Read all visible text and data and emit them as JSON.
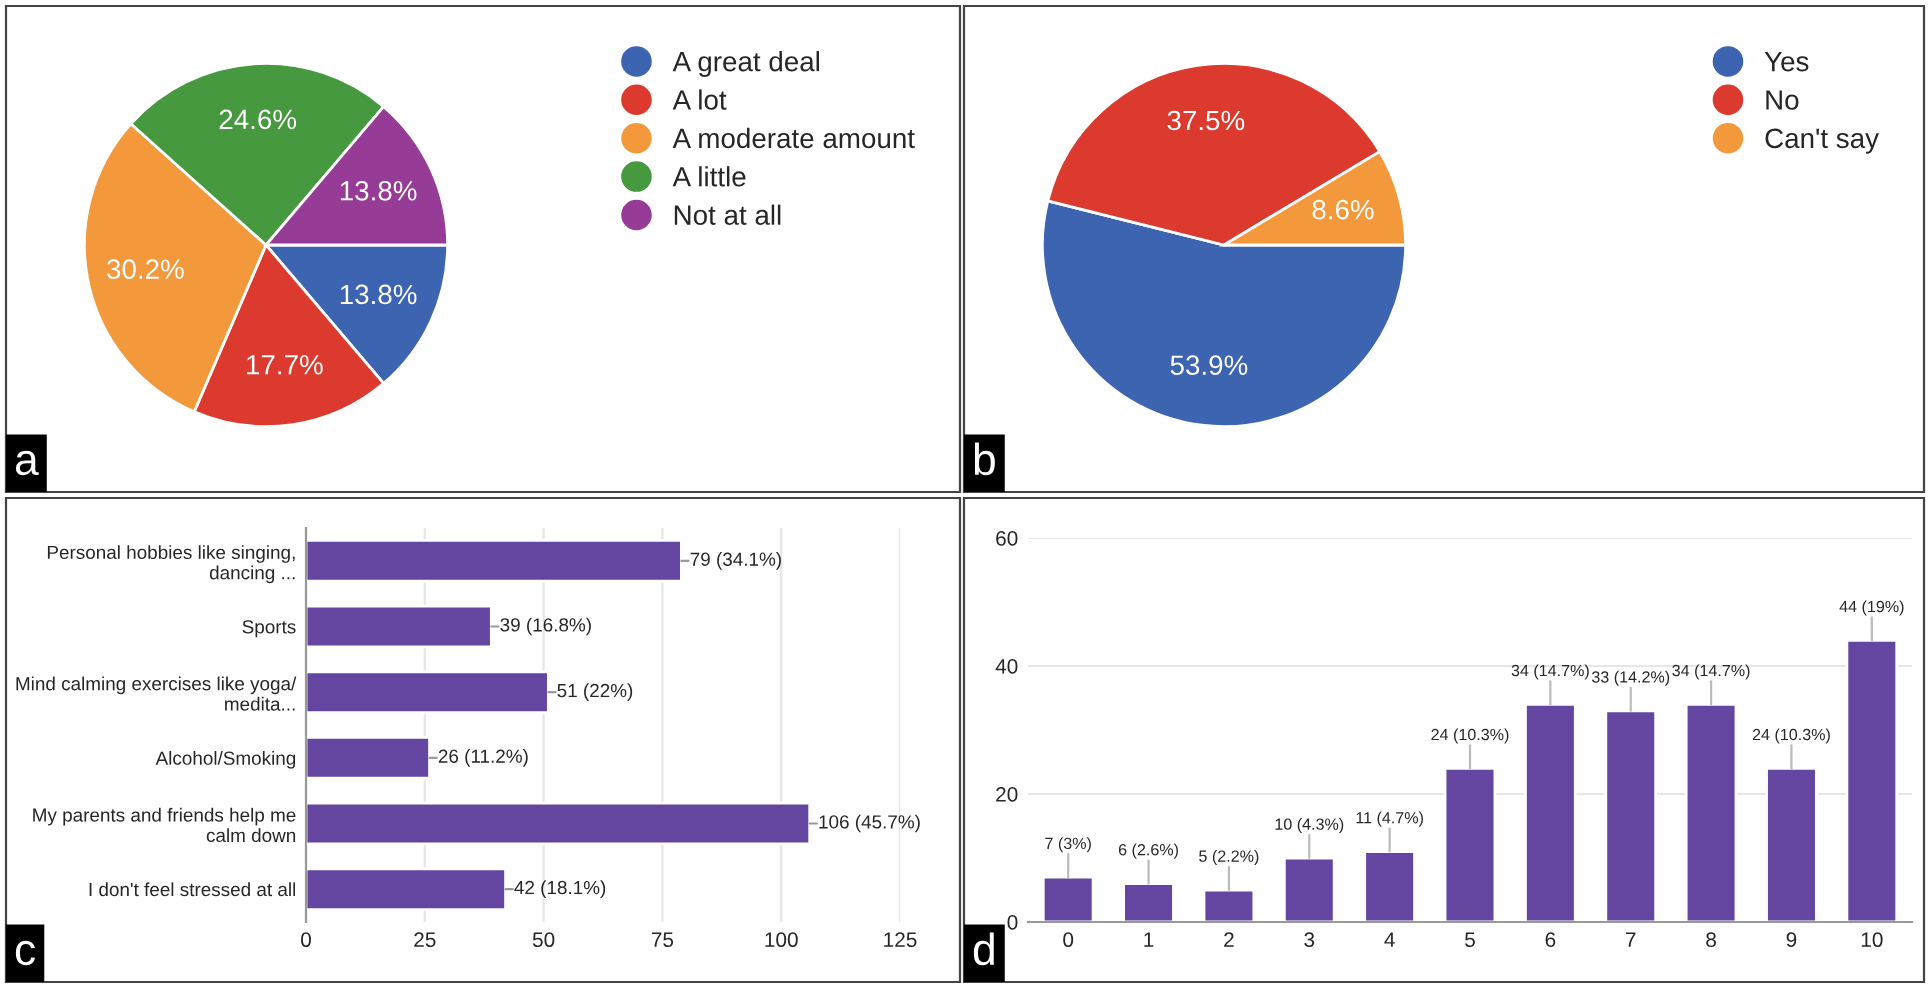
{
  "chart_data": [
    {
      "type": "pie",
      "categories": [
        "A great deal",
        "A lot",
        "A moderate amount",
        "A little",
        "Not at all"
      ],
      "values": [
        13.8,
        17.7,
        30.2,
        24.6,
        13.8
      ],
      "colors": [
        "#3c64b1",
        "#dc3a2f",
        "#f3993c",
        "#46993f",
        "#963c96"
      ],
      "value_labels": [
        "13.8%",
        "17.7%",
        "30.2%",
        "24.6%",
        "13.8%"
      ],
      "legend": "top right",
      "annotations": [
        "a"
      ]
    },
    {
      "type": "pie",
      "categories": [
        "Yes",
        "No",
        "Can't say"
      ],
      "values": [
        53.9,
        37.5,
        8.6
      ],
      "colors": [
        "#3c64b1",
        "#dc3a2f",
        "#f3993c"
      ],
      "value_labels": [
        "53.9%",
        "37.5%",
        "8.6%"
      ],
      "legend": "top right",
      "annotations": [
        "b"
      ]
    },
    {
      "type": "bar",
      "orientation": "horizontal",
      "categories": [
        "Personal hobbies like singing,\ndancing ...",
        "Sports",
        "Mind calming exercises like yoga/\nmedita...",
        "Alcohol/Smoking",
        "My parents and friends help me\ncalm down",
        "I don't feel stressed at all"
      ],
      "values": [
        79,
        39,
        51,
        26,
        106,
        42
      ],
      "color": "#6445a0",
      "value_labels": [
        "79 (34.1%)",
        "39 (16.8%)",
        "51 (22%)",
        "26 (11.2%)",
        "106 (45.7%)",
        "42 (18.1%)"
      ],
      "xlim": [
        0,
        125
      ],
      "xticks": [
        0,
        25,
        50,
        75,
        100,
        125
      ],
      "grid": "x",
      "annotations": [
        "c"
      ]
    },
    {
      "type": "bar",
      "categories": [
        "0",
        "1",
        "2",
        "3",
        "4",
        "5",
        "6",
        "7",
        "8",
        "9",
        "10"
      ],
      "values": [
        7,
        6,
        5,
        10,
        11,
        24,
        34,
        33,
        34,
        24,
        44
      ],
      "color": "#6445a0",
      "value_labels": [
        "7 (3%)",
        "6 (2.6%)",
        "5 (2.2%)",
        "10 (4.3%)",
        "11 (4.7%)",
        "24 (10.3%)",
        "34 (14.7%)",
        "33 (14.2%)",
        "34 (14.7%)",
        "24 (10.3%)",
        "44 (19%)"
      ],
      "ylim": [
        0,
        60
      ],
      "yticks": [
        0,
        20,
        40,
        60
      ],
      "grid": "y",
      "annotations": [
        "d"
      ]
    }
  ]
}
